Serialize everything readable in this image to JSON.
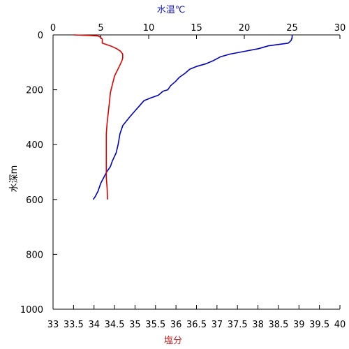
{
  "chart_data": {
    "type": "line",
    "axes": {
      "temperature": {
        "position": "top",
        "label": "水温℃",
        "range": [
          0,
          30
        ],
        "ticks": [
          0,
          5,
          10,
          15,
          20,
          25,
          30
        ],
        "color": "#0000c0"
      },
      "salinity": {
        "position": "bottom",
        "label": "塩分",
        "range": [
          33,
          40
        ],
        "ticks": [
          33,
          33.5,
          34,
          34.5,
          35,
          35.5,
          36,
          36.5,
          37,
          37.5,
          38,
          38.5,
          39,
          39.5,
          40
        ],
        "color": "#d00000"
      },
      "depth": {
        "position": "left",
        "label": "水深m",
        "range": [
          0,
          1000
        ],
        "inverted": true,
        "ticks": [
          0,
          200,
          400,
          600,
          800,
          1000
        ]
      }
    },
    "series": [
      {
        "axis": "temperature",
        "color": "#0000c0",
        "points": [
          [
            25.0,
            0
          ],
          [
            25.0,
            10
          ],
          [
            24.9,
            20
          ],
          [
            24.6,
            30
          ],
          [
            22.5,
            40
          ],
          [
            21.5,
            50
          ],
          [
            20.0,
            60
          ],
          [
            18.5,
            70
          ],
          [
            17.5,
            80
          ],
          [
            16.7,
            95
          ],
          [
            16.0,
            105
          ],
          [
            15.0,
            115
          ],
          [
            14.3,
            125
          ],
          [
            13.8,
            140
          ],
          [
            13.2,
            155
          ],
          [
            12.8,
            170
          ],
          [
            12.3,
            185
          ],
          [
            12.0,
            200
          ],
          [
            11.5,
            205
          ],
          [
            11.0,
            220
          ],
          [
            10.2,
            230
          ],
          [
            9.5,
            240
          ],
          [
            9.0,
            260
          ],
          [
            8.5,
            280
          ],
          [
            8.0,
            300
          ],
          [
            7.3,
            330
          ],
          [
            7.0,
            360
          ],
          [
            6.8,
            400
          ],
          [
            6.6,
            430
          ],
          [
            6.2,
            460
          ],
          [
            6.0,
            480
          ],
          [
            5.6,
            500
          ],
          [
            5.3,
            520
          ],
          [
            5.0,
            540
          ],
          [
            4.7,
            570
          ],
          [
            4.4,
            590
          ],
          [
            4.2,
            600
          ]
        ]
      },
      {
        "axis": "salinity",
        "color": "#e00000",
        "points": [
          [
            33.5,
            0
          ],
          [
            33.9,
            2
          ],
          [
            34.1,
            4
          ],
          [
            34.15,
            8
          ],
          [
            34.2,
            15
          ],
          [
            34.2,
            30
          ],
          [
            34.4,
            40
          ],
          [
            34.55,
            50
          ],
          [
            34.65,
            60
          ],
          [
            34.7,
            70
          ],
          [
            34.7,
            85
          ],
          [
            34.68,
            95
          ],
          [
            34.6,
            120
          ],
          [
            34.5,
            150
          ],
          [
            34.45,
            180
          ],
          [
            34.4,
            210
          ],
          [
            34.38,
            240
          ],
          [
            34.35,
            280
          ],
          [
            34.32,
            320
          ],
          [
            34.3,
            360
          ],
          [
            34.3,
            400
          ],
          [
            34.3,
            440
          ],
          [
            34.3,
            480
          ],
          [
            34.3,
            520
          ],
          [
            34.32,
            560
          ],
          [
            34.33,
            600
          ]
        ]
      }
    ],
    "grid": false,
    "legend": false
  }
}
